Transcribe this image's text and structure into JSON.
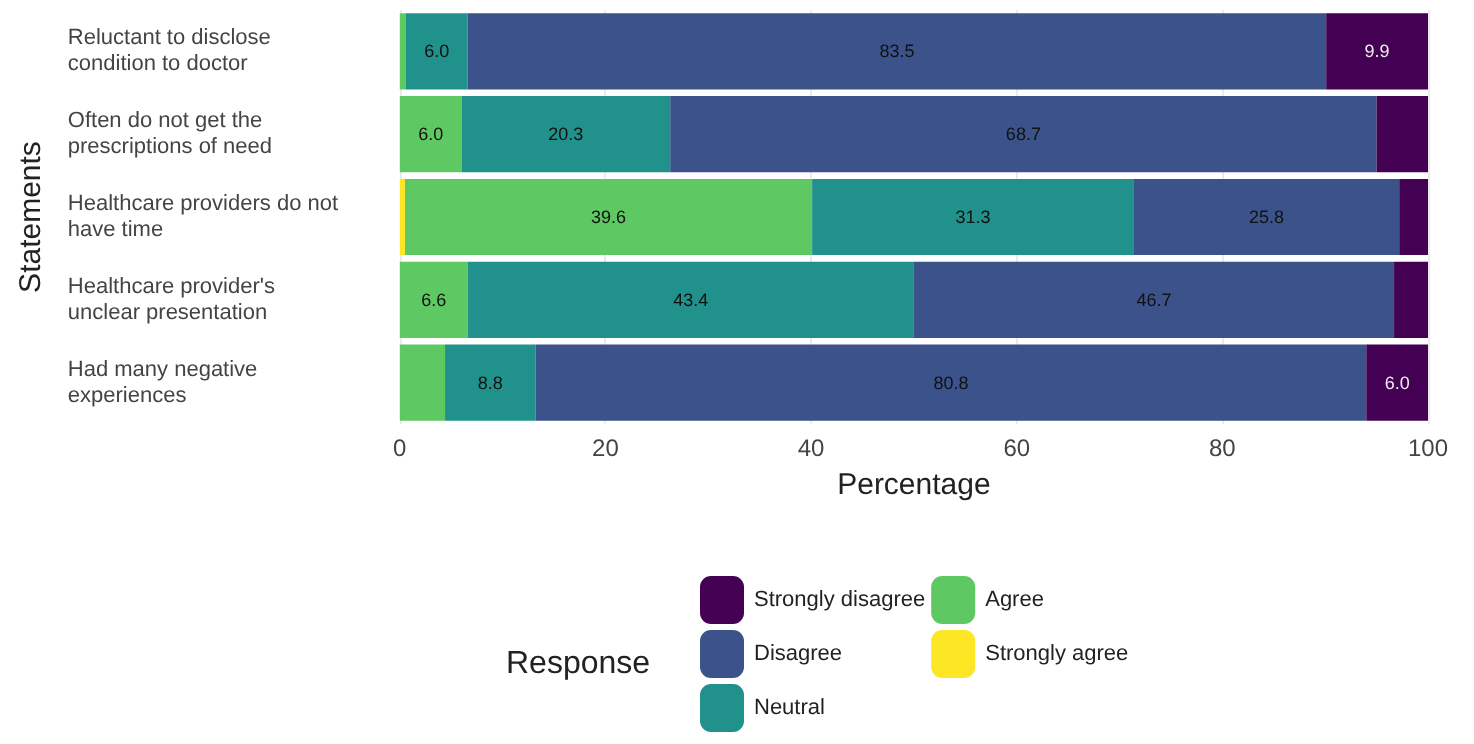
{
  "chart_data": {
    "type": "bar",
    "orientation": "horizontal",
    "stacked": true,
    "xlabel": "Percentage",
    "ylabel": "Statements",
    "legend_title": "Response",
    "legend": "bottom",
    "grid": "x",
    "categories": [
      "Reluctant to disclose condition to doctor",
      "Often do not get the prescriptions of need",
      "Healthcare providers do not have time",
      "Healthcare provider's unclear presentation",
      "Had many negative experiences"
    ],
    "xlim": [
      0,
      100
    ],
    "xticks": [
      0,
      20,
      40,
      60,
      80,
      100
    ],
    "series": [
      {
        "name": "Strongly agree",
        "color": "#fde725",
        "values": [
          0,
          0,
          0.5,
          0,
          0
        ],
        "value_labels": [
          null,
          null,
          null,
          null,
          null
        ]
      },
      {
        "name": "Agree",
        "color": "#5ec962",
        "values": [
          0.6,
          6.0,
          39.6,
          6.6,
          4.4
        ],
        "value_labels": [
          null,
          "6.0",
          "39.6",
          "6.6",
          null
        ]
      },
      {
        "name": "Neutral",
        "color": "#21918c",
        "values": [
          6.0,
          20.3,
          31.3,
          43.4,
          8.8
        ],
        "value_labels": [
          "6.0",
          "20.3",
          "31.3",
          "43.4",
          "8.8"
        ]
      },
      {
        "name": "Disagree",
        "color": "#3b528b",
        "values": [
          83.5,
          68.7,
          25.8,
          46.7,
          80.8
        ],
        "value_labels": [
          "83.5",
          "68.7",
          "25.8",
          "46.7",
          "80.8"
        ]
      },
      {
        "name": "Strongly disagree",
        "color": "#440154",
        "values": [
          9.9,
          5.0,
          2.8,
          3.3,
          6.0
        ],
        "value_labels": [
          "9.9",
          null,
          null,
          null,
          "6.0"
        ]
      }
    ]
  }
}
